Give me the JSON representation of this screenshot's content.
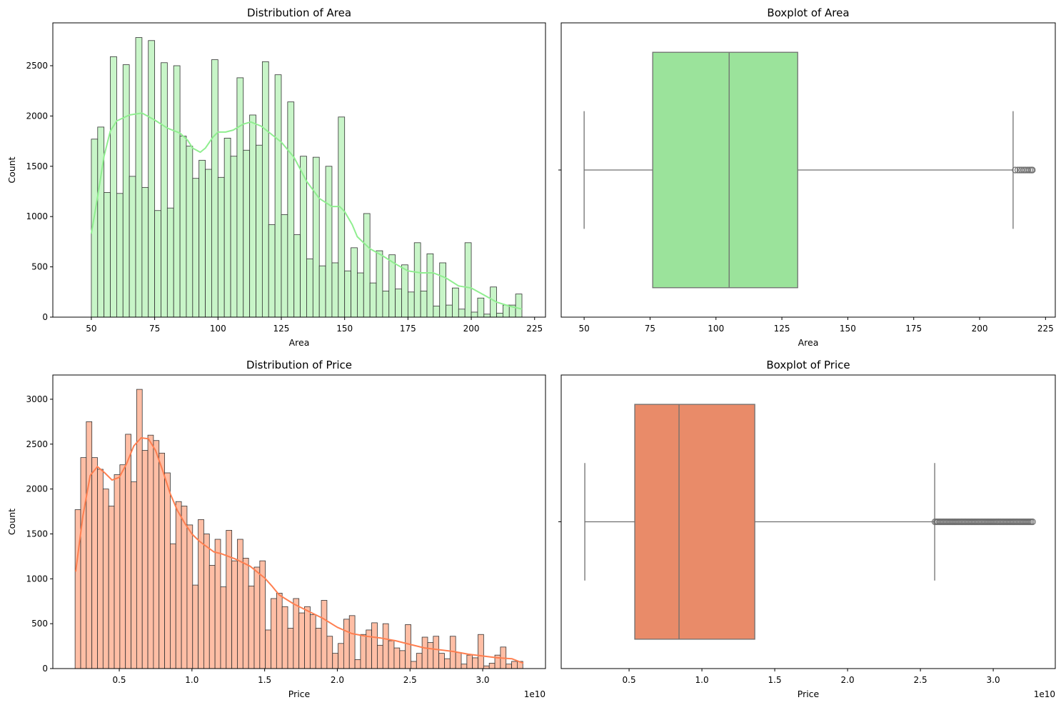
{
  "chart_data": [
    {
      "type": "bar",
      "id": "hist_area",
      "title": "Distribution of Area",
      "xlabel": "Area",
      "ylabel": "Count",
      "xlim": [
        34.8,
        229.3
      ],
      "ylim": [
        0,
        2926
      ],
      "xticks": [
        50,
        75,
        100,
        125,
        150,
        175,
        200,
        225
      ],
      "yticks": [
        0,
        500,
        1000,
        1500,
        2000,
        2500
      ],
      "bin_start": 50,
      "bin_width": 2.5,
      "values": [
        1770,
        1890,
        1240,
        2590,
        1230,
        2510,
        1400,
        2780,
        1290,
        2750,
        1060,
        2530,
        1085,
        2500,
        1800,
        1700,
        1380,
        1560,
        1470,
        2560,
        1390,
        1780,
        1600,
        2380,
        1660,
        2010,
        1710,
        2540,
        920,
        2410,
        1020,
        2140,
        820,
        1600,
        580,
        1590,
        510,
        1500,
        540,
        1990,
        460,
        690,
        440,
        1030,
        340,
        660,
        260,
        620,
        280,
        520,
        250,
        740,
        260,
        630,
        110,
        540,
        120,
        290,
        80,
        740,
        50,
        190,
        30,
        300,
        40,
        120,
        120,
        230
      ],
      "kde": [
        [
          50,
          830
        ],
        [
          52.5,
          1200
        ],
        [
          55,
          1600
        ],
        [
          57.5,
          1850
        ],
        [
          60,
          1950
        ],
        [
          65,
          2010
        ],
        [
          70,
          2030
        ],
        [
          75,
          1960
        ],
        [
          80,
          1880
        ],
        [
          85,
          1830
        ],
        [
          88,
          1760
        ],
        [
          90,
          1680
        ],
        [
          93,
          1640
        ],
        [
          95,
          1680
        ],
        [
          98,
          1790
        ],
        [
          100,
          1840
        ],
        [
          103,
          1840
        ],
        [
          106,
          1860
        ],
        [
          110,
          1920
        ],
        [
          113,
          1940
        ],
        [
          117,
          1900
        ],
        [
          120,
          1840
        ],
        [
          125,
          1740
        ],
        [
          130,
          1590
        ],
        [
          135,
          1350
        ],
        [
          140,
          1180
        ],
        [
          145,
          1100
        ],
        [
          148,
          1100
        ],
        [
          150,
          1050
        ],
        [
          153,
          920
        ],
        [
          155,
          800
        ],
        [
          160,
          680
        ],
        [
          165,
          610
        ],
        [
          170,
          530
        ],
        [
          175,
          460
        ],
        [
          180,
          440
        ],
        [
          185,
          440
        ],
        [
          190,
          390
        ],
        [
          195,
          310
        ],
        [
          200,
          290
        ],
        [
          205,
          220
        ],
        [
          210,
          150
        ],
        [
          215,
          110
        ],
        [
          220,
          80
        ]
      ],
      "colors": {
        "fill": "#c8f5c8",
        "edge": "#333333",
        "kde": "#90ee90"
      }
    },
    {
      "type": "box",
      "id": "box_area",
      "title": "Boxplot of Area",
      "xlabel": "Area",
      "xlim": [
        41.3,
        228.7
      ],
      "xticks": [
        50,
        75,
        100,
        125,
        150,
        175,
        200,
        225
      ],
      "whisker_low": 50,
      "q1": 76,
      "median": 105,
      "q3": 131,
      "whisker_high": 212.7,
      "outliers": [
        213.5,
        214.5,
        215.3,
        216,
        216.8,
        217.5,
        218.3,
        219,
        219.6,
        220
      ],
      "colors": {
        "box": "#9be39b",
        "line": "#6f6f6f"
      }
    },
    {
      "type": "bar",
      "id": "hist_price",
      "title": "Distribution of Price",
      "xlabel": "Price",
      "ylabel": "Count",
      "offset_label": "1e10",
      "xlim": [
        0.043,
        3.432
      ],
      "ylim": [
        0,
        3270
      ],
      "xticks": [
        0.5,
        1.0,
        1.5,
        2.0,
        2.5,
        3.0
      ],
      "yticks": [
        0,
        500,
        1000,
        1500,
        2000,
        2500,
        3000
      ],
      "bin_start": 0.196,
      "bin_width": 0.0385,
      "values": [
        1770,
        2350,
        2750,
        2350,
        2220,
        2000,
        1810,
        2160,
        2270,
        2610,
        2080,
        3110,
        2430,
        2600,
        2540,
        2400,
        2180,
        1390,
        1860,
        1810,
        1600,
        930,
        1660,
        1500,
        1150,
        1440,
        910,
        1540,
        1200,
        1440,
        1230,
        920,
        1130,
        1200,
        430,
        780,
        840,
        690,
        450,
        780,
        620,
        690,
        600,
        450,
        760,
        360,
        170,
        280,
        550,
        590,
        100,
        380,
        430,
        510,
        260,
        500,
        310,
        230,
        200,
        490,
        80,
        170,
        350,
        290,
        360,
        170,
        110,
        360,
        180,
        50,
        150,
        120,
        380,
        30,
        60,
        150,
        240,
        50,
        80,
        80
      ],
      "kde": [
        [
          0.2,
          1080
        ],
        [
          0.25,
          1700
        ],
        [
          0.3,
          2150
        ],
        [
          0.35,
          2250
        ],
        [
          0.4,
          2180
        ],
        [
          0.45,
          2100
        ],
        [
          0.5,
          2130
        ],
        [
          0.55,
          2280
        ],
        [
          0.6,
          2480
        ],
        [
          0.65,
          2570
        ],
        [
          0.7,
          2560
        ],
        [
          0.75,
          2430
        ],
        [
          0.8,
          2200
        ],
        [
          0.85,
          1950
        ],
        [
          0.9,
          1760
        ],
        [
          0.95,
          1620
        ],
        [
          1.0,
          1500
        ],
        [
          1.05,
          1420
        ],
        [
          1.1,
          1360
        ],
        [
          1.15,
          1300
        ],
        [
          1.2,
          1280
        ],
        [
          1.3,
          1220
        ],
        [
          1.4,
          1140
        ],
        [
          1.5,
          1010
        ],
        [
          1.55,
          920
        ],
        [
          1.6,
          820
        ],
        [
          1.7,
          720
        ],
        [
          1.8,
          640
        ],
        [
          1.9,
          560
        ],
        [
          2.0,
          460
        ],
        [
          2.1,
          390
        ],
        [
          2.2,
          360
        ],
        [
          2.3,
          340
        ],
        [
          2.4,
          310
        ],
        [
          2.5,
          270
        ],
        [
          2.6,
          230
        ],
        [
          2.7,
          210
        ],
        [
          2.8,
          190
        ],
        [
          2.9,
          160
        ],
        [
          3.0,
          140
        ],
        [
          3.1,
          120
        ],
        [
          3.2,
          110
        ],
        [
          3.28,
          60
        ]
      ],
      "colors": {
        "fill": "#ffbea5",
        "edge": "#333333",
        "kde": "#ff7f50"
      }
    },
    {
      "type": "box",
      "id": "box_price",
      "title": "Boxplot of Price",
      "xlabel": "Price",
      "offset_label": "1e10",
      "xlim": [
        0.034,
        3.426
      ],
      "xticks": [
        0.5,
        1.0,
        1.5,
        2.0,
        2.5,
        3.0
      ],
      "whisker_low": 0.196,
      "q1": 0.539,
      "median": 0.843,
      "q3": 1.363,
      "whisker_high": 2.598,
      "outliers_range": [
        2.6,
        3.275
      ],
      "colors": {
        "box": "#e98b69",
        "line": "#6f6f6f"
      }
    }
  ]
}
